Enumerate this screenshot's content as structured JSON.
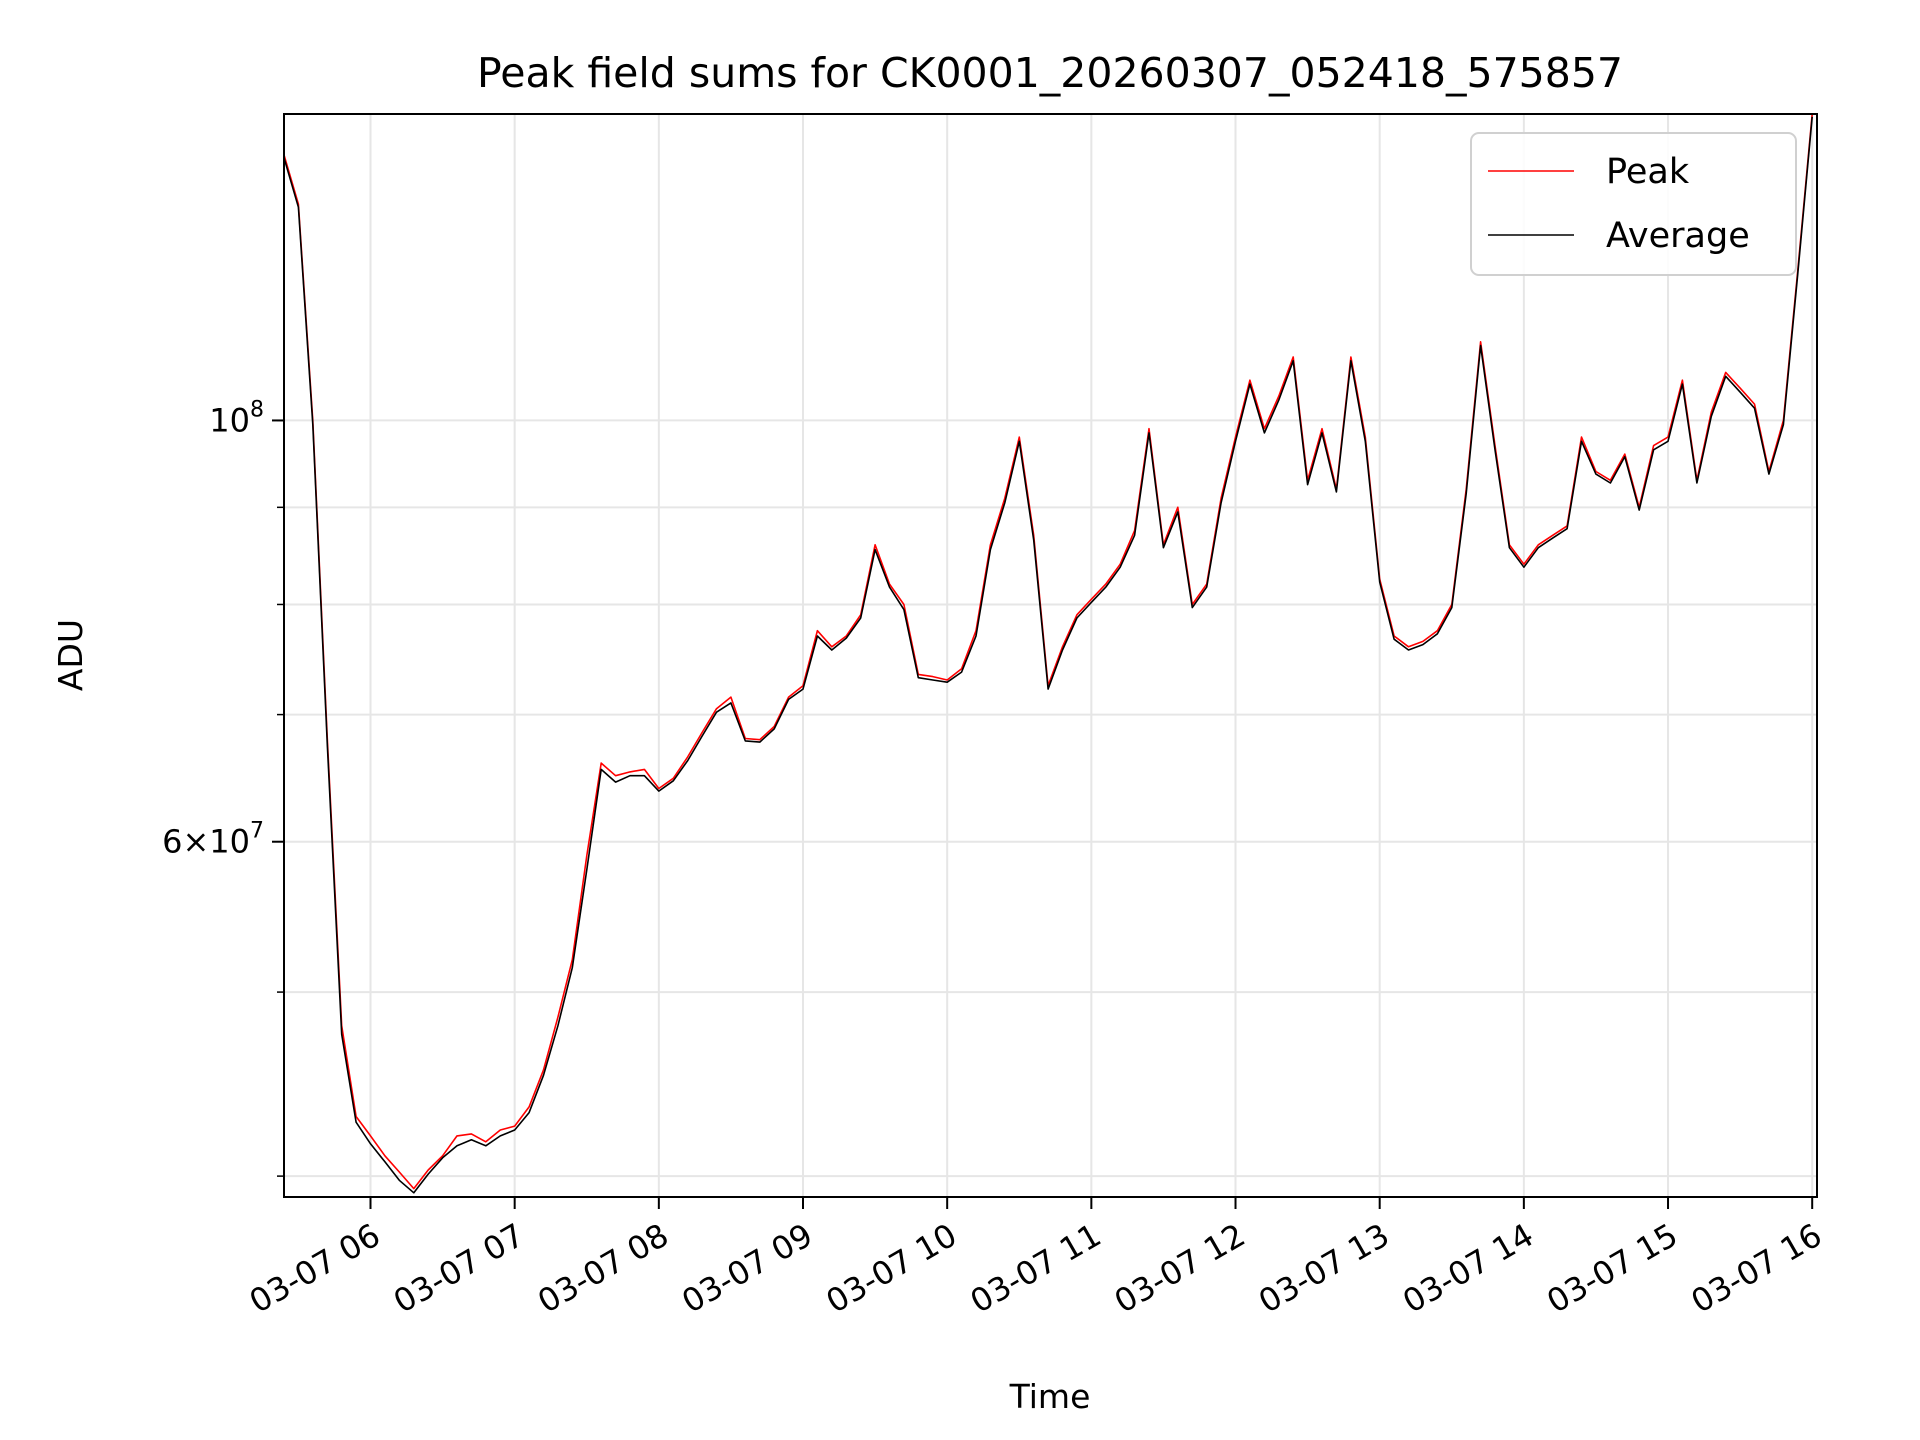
{
  "chart_data": {
    "type": "line",
    "title": "Peak field sums for CK0001_20260307_052418_575857",
    "xlabel": "Time",
    "ylabel": "ADU",
    "x_ticks": [
      "03-07 06",
      "03-07 07",
      "03-07 08",
      "03-07 09",
      "03-07 10",
      "03-07 11",
      "03-07 12",
      "03-07 13",
      "03-07 14",
      "03-07 15",
      "03-07 16"
    ],
    "y_ticks": [
      {
        "base": "10",
        "exp": "8",
        "value": 100000000
      },
      {
        "mant": "6",
        "base": "10",
        "exp": "7",
        "value": 60000000
      }
    ],
    "y_scale": "log",
    "xlim": [
      "2026-03-07 05:24",
      "2026-03-07 16:02"
    ],
    "ylim": [
      39000000,
      145000000
    ],
    "grid": true,
    "legend_position": "upper right",
    "x": [
      "05:24",
      "05:30",
      "05:36",
      "05:42",
      "05:48",
      "05:54",
      "06:00",
      "06:06",
      "06:12",
      "06:18",
      "06:24",
      "06:30",
      "06:36",
      "06:42",
      "06:48",
      "06:54",
      "07:00",
      "07:06",
      "07:12",
      "07:18",
      "07:24",
      "07:30",
      "07:36",
      "07:42",
      "07:48",
      "07:54",
      "08:00",
      "08:06",
      "08:12",
      "08:18",
      "08:24",
      "08:30",
      "08:36",
      "08:42",
      "08:48",
      "08:54",
      "09:00",
      "09:06",
      "09:12",
      "09:18",
      "09:24",
      "09:30",
      "09:36",
      "09:42",
      "09:48",
      "09:54",
      "10:00",
      "10:06",
      "10:12",
      "10:18",
      "10:24",
      "10:30",
      "10:36",
      "10:42",
      "10:48",
      "10:54",
      "11:00",
      "11:06",
      "11:12",
      "11:18",
      "11:24",
      "11:30",
      "11:36",
      "11:42",
      "11:48",
      "11:54",
      "12:00",
      "12:06",
      "12:12",
      "12:18",
      "12:24",
      "12:30",
      "12:36",
      "12:42",
      "12:48",
      "12:54",
      "13:00",
      "13:06",
      "13:12",
      "13:18",
      "13:24",
      "13:30",
      "13:36",
      "13:42",
      "13:48",
      "13:54",
      "14:00",
      "14:06",
      "14:12",
      "14:18",
      "14:24",
      "14:30",
      "14:36",
      "14:42",
      "14:48",
      "14:54",
      "15:00",
      "15:06",
      "15:12",
      "15:18",
      "15:24",
      "15:30",
      "15:36",
      "15:42",
      "15:48",
      "15:54",
      "16:00"
    ],
    "series": [
      {
        "name": "Peak",
        "color": "#ff0000",
        "values": [
          138000000,
          130000000,
          100000000,
          68000000,
          48000000,
          43000000,
          42000000,
          41000000,
          40200000,
          39400000,
          40300000,
          41000000,
          42000000,
          42100000,
          41700000,
          42300000,
          42500000,
          43500000,
          45500000,
          48500000,
          52000000,
          59000000,
          66000000,
          65000000,
          65300000,
          65500000,
          64000000,
          64800000,
          66500000,
          68500000,
          70500000,
          71500000,
          68000000,
          67900000,
          69000000,
          71500000,
          72500000,
          77500000,
          76000000,
          77000000,
          79000000,
          86000000,
          82000000,
          80000000,
          73500000,
          73300000,
          73000000,
          74000000,
          77500000,
          86000000,
          91000000,
          98000000,
          87000000,
          72500000,
          76000000,
          79000000,
          80500000,
          82000000,
          84000000,
          87500000,
          99000000,
          86000000,
          90000000,
          80000000,
          82000000,
          91000000,
          98000000,
          105000000,
          99000000,
          103000000,
          108000000,
          93000000,
          99000000,
          92000000,
          108000000,
          98000000,
          82500000,
          77000000,
          76000000,
          76500000,
          77500000,
          80000000,
          92000000,
          110000000,
          97000000,
          86000000,
          84000000,
          86000000,
          87000000,
          88000000,
          98000000,
          94000000,
          93000000,
          96000000,
          90000000,
          97000000,
          98000000,
          105000000,
          93000000,
          101000000,
          106000000,
          104000000,
          102000000,
          94000000,
          100000000,
          120000000,
          145000000
        ]
      },
      {
        "name": "Average",
        "color": "#000000",
        "values": [
          137500000,
          129500000,
          99500000,
          67500000,
          47500000,
          42700000,
          41600000,
          40700000,
          39800000,
          39200000,
          40100000,
          40900000,
          41500000,
          41800000,
          41500000,
          42000000,
          42300000,
          43200000,
          45200000,
          48000000,
          51500000,
          58000000,
          65500000,
          64500000,
          65000000,
          65000000,
          63800000,
          64600000,
          66200000,
          68200000,
          70200000,
          71000000,
          67800000,
          67700000,
          68800000,
          71300000,
          72200000,
          77000000,
          75700000,
          76800000,
          78700000,
          85500000,
          81700000,
          79500000,
          73200000,
          73000000,
          72800000,
          73700000,
          77000000,
          85500000,
          90500000,
          97500000,
          86500000,
          72200000,
          75700000,
          78700000,
          80200000,
          81700000,
          83700000,
          87000000,
          98500000,
          85700000,
          89500000,
          79700000,
          81700000,
          90500000,
          97500000,
          104500000,
          98500000,
          102500000,
          107500000,
          92500000,
          98500000,
          91700000,
          107500000,
          97500000,
          82200000,
          76700000,
          75700000,
          76200000,
          77200000,
          79700000,
          91500000,
          109500000,
          96500000,
          85700000,
          83700000,
          85700000,
          86700000,
          87700000,
          97500000,
          93700000,
          92700000,
          95700000,
          89700000,
          96500000,
          97500000,
          104500000,
          92700000,
          100500000,
          105500000,
          103500000,
          101500000,
          93700000,
          99500000,
          119500000,
          144500000
        ]
      }
    ]
  }
}
